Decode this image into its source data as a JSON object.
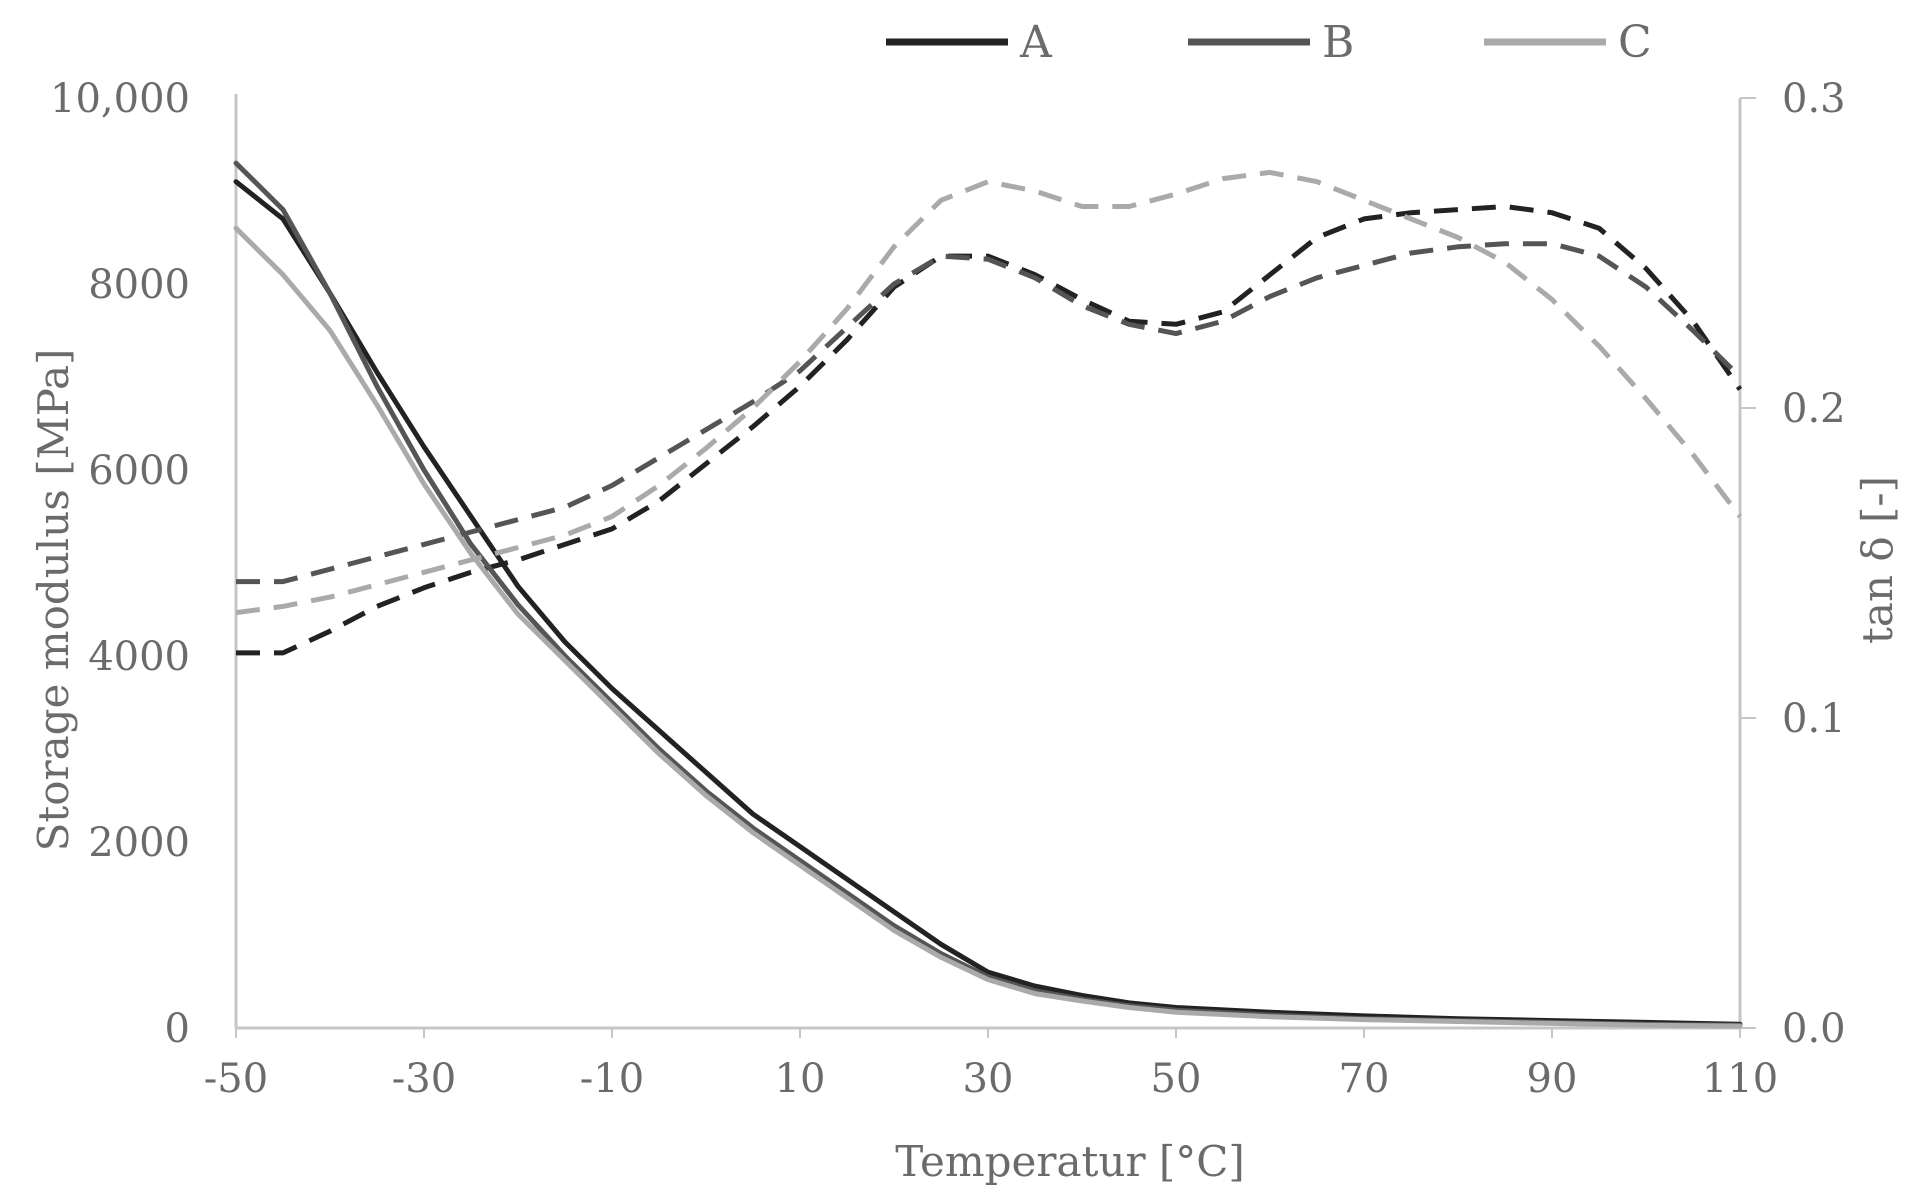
{
  "chart_data": {
    "type": "line",
    "title": "",
    "xlabel": "Temperatur [°C]",
    "ylabel": "Storage modulus [MPa]",
    "y2label": "tan δ [-]",
    "xlim": [
      -50,
      110
    ],
    "ylim": [
      0,
      10000
    ],
    "y2lim": [
      0,
      0.3
    ],
    "x_ticks": [
      "-50",
      "-30",
      "-10",
      "10",
      "30",
      "50",
      "70",
      "90",
      "110"
    ],
    "y_ticks": [
      "0",
      "2000",
      "4000",
      "6000",
      "8000",
      "10,000"
    ],
    "y2_ticks": [
      "0.0",
      "0.1",
      "0.2",
      "0.3"
    ],
    "grid": false,
    "legend_position": "top",
    "series": [
      {
        "name": "A",
        "color": "#222222",
        "storage_modulus": {
          "x": [
            -50,
            -45,
            -40,
            -35,
            -30,
            -25,
            -20,
            -15,
            -10,
            -5,
            0,
            5,
            10,
            15,
            20,
            25,
            30,
            35,
            40,
            45,
            50,
            60,
            70,
            80,
            90,
            100,
            110
          ],
          "y": [
            9100,
            8700,
            7900,
            7050,
            6250,
            5500,
            4750,
            4150,
            3650,
            3200,
            2750,
            2300,
            1950,
            1600,
            1250,
            900,
            600,
            450,
            350,
            270,
            220,
            170,
            130,
            100,
            80,
            60,
            40
          ]
        },
        "tan_delta": {
          "x": [
            -50,
            -45,
            -40,
            -35,
            -30,
            -25,
            -20,
            -15,
            -10,
            -5,
            0,
            5,
            10,
            15,
            20,
            25,
            30,
            35,
            40,
            45,
            50,
            55,
            60,
            65,
            70,
            75,
            80,
            85,
            90,
            95,
            100,
            105,
            110
          ],
          "y": [
            0.121,
            0.121,
            0.128,
            0.136,
            0.142,
            0.147,
            0.151,
            0.156,
            0.161,
            0.17,
            0.182,
            0.194,
            0.207,
            0.222,
            0.239,
            0.249,
            0.249,
            0.243,
            0.235,
            0.228,
            0.227,
            0.231,
            0.243,
            0.255,
            0.261,
            0.263,
            0.264,
            0.265,
            0.263,
            0.258,
            0.245,
            0.228,
            0.206
          ]
        }
      },
      {
        "name": "B",
        "color": "#555555",
        "storage_modulus": {
          "x": [
            -50,
            -45,
            -40,
            -35,
            -30,
            -25,
            -20,
            -15,
            -10,
            -5,
            0,
            5,
            10,
            15,
            20,
            25,
            30,
            35,
            40,
            45,
            50,
            60,
            70,
            80,
            90,
            100,
            110
          ],
          "y": [
            9300,
            8800,
            7900,
            6900,
            6000,
            5200,
            4550,
            4000,
            3500,
            3000,
            2550,
            2150,
            1800,
            1450,
            1100,
            800,
            550,
            400,
            310,
            240,
            190,
            140,
            100,
            80,
            60,
            40,
            30
          ]
        },
        "tan_delta": {
          "x": [
            -50,
            -45,
            -40,
            -35,
            -30,
            -25,
            -20,
            -15,
            -10,
            -5,
            0,
            5,
            10,
            15,
            20,
            25,
            30,
            35,
            40,
            45,
            50,
            55,
            60,
            65,
            70,
            75,
            80,
            85,
            90,
            95,
            100,
            105,
            110
          ],
          "y": [
            0.144,
            0.144,
            0.148,
            0.152,
            0.156,
            0.16,
            0.164,
            0.168,
            0.175,
            0.184,
            0.193,
            0.202,
            0.212,
            0.226,
            0.24,
            0.249,
            0.248,
            0.242,
            0.233,
            0.227,
            0.224,
            0.228,
            0.236,
            0.242,
            0.246,
            0.25,
            0.252,
            0.253,
            0.253,
            0.249,
            0.239,
            0.225,
            0.21
          ]
        }
      },
      {
        "name": "C",
        "color": "#aaaaaa",
        "storage_modulus": {
          "x": [
            -50,
            -45,
            -40,
            -35,
            -30,
            -25,
            -20,
            -15,
            -10,
            -5,
            0,
            5,
            10,
            15,
            20,
            25,
            30,
            35,
            40,
            45,
            50,
            60,
            70,
            80,
            90,
            100,
            110
          ],
          "y": [
            8600,
            8100,
            7500,
            6700,
            5850,
            5100,
            4450,
            3950,
            3450,
            2950,
            2500,
            2100,
            1750,
            1400,
            1050,
            760,
            520,
            370,
            290,
            220,
            170,
            120,
            90,
            70,
            50,
            30,
            20
          ]
        },
        "tan_delta": {
          "x": [
            -50,
            -45,
            -40,
            -35,
            -30,
            -25,
            -20,
            -15,
            -10,
            -5,
            0,
            5,
            10,
            15,
            20,
            25,
            30,
            35,
            40,
            45,
            50,
            55,
            60,
            65,
            70,
            75,
            80,
            85,
            90,
            95,
            100,
            105,
            110
          ],
          "y": [
            0.134,
            0.136,
            0.139,
            0.143,
            0.147,
            0.151,
            0.155,
            0.159,
            0.165,
            0.175,
            0.187,
            0.2,
            0.215,
            0.232,
            0.252,
            0.267,
            0.273,
            0.27,
            0.265,
            0.265,
            0.269,
            0.274,
            0.276,
            0.273,
            0.267,
            0.261,
            0.255,
            0.247,
            0.235,
            0.22,
            0.203,
            0.185,
            0.165
          ]
        }
      }
    ]
  }
}
